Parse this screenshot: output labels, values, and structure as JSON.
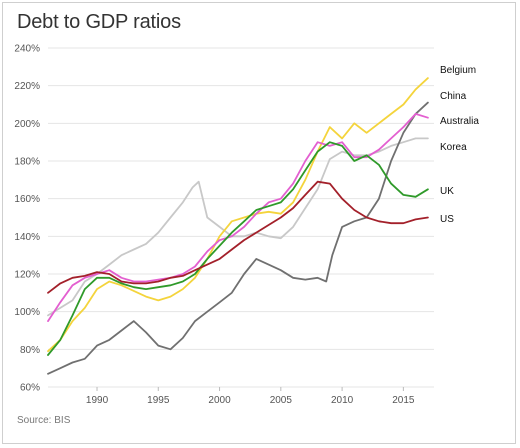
{
  "title": "Debt to GDP ratios",
  "source": "Source: BIS",
  "chart_data": {
    "type": "line",
    "title": "Debt to GDP ratios",
    "xlabel": "",
    "ylabel": "",
    "xlim": [
      1986,
      2017.5
    ],
    "ylim": [
      60,
      240
    ],
    "x_ticks": [
      1990,
      1995,
      2000,
      2005,
      2010,
      2015
    ],
    "y_ticks": [
      60,
      80,
      100,
      120,
      140,
      160,
      180,
      200,
      220,
      240
    ],
    "y_tick_suffix": "%",
    "grid": "horizontal",
    "legend": "inline labels at line ends (right)",
    "series": [
      {
        "name": "Korea",
        "color": "#c8c8c8",
        "points": [
          [
            1986,
            98
          ],
          [
            1987,
            102
          ],
          [
            1988,
            106
          ],
          [
            1989,
            116
          ],
          [
            1990,
            120
          ],
          [
            1991,
            125
          ],
          [
            1992,
            130
          ],
          [
            1993,
            133
          ],
          [
            1994,
            136
          ],
          [
            1995,
            142
          ],
          [
            1996,
            150
          ],
          [
            1997,
            158
          ],
          [
            1997.8,
            166
          ],
          [
            1998.3,
            169
          ],
          [
            1999,
            150
          ],
          [
            2000,
            145
          ],
          [
            2001,
            140
          ],
          [
            2002,
            140
          ],
          [
            2003,
            142
          ],
          [
            2004,
            140
          ],
          [
            2005,
            139
          ],
          [
            2006,
            145
          ],
          [
            2007,
            155
          ],
          [
            2008,
            165
          ],
          [
            2009,
            181
          ],
          [
            2010,
            185
          ],
          [
            2011,
            183
          ],
          [
            2012,
            183
          ],
          [
            2013,
            185
          ],
          [
            2014,
            188
          ],
          [
            2015,
            190
          ],
          [
            2016,
            192
          ],
          [
            2017,
            192
          ]
        ]
      },
      {
        "name": "China",
        "color": "#707070",
        "points": [
          [
            1986,
            67
          ],
          [
            1987,
            70
          ],
          [
            1988,
            73
          ],
          [
            1989,
            75
          ],
          [
            1990,
            82
          ],
          [
            1991,
            85
          ],
          [
            1992,
            90
          ],
          [
            1993,
            95
          ],
          [
            1994,
            89
          ],
          [
            1995,
            82
          ],
          [
            1996,
            80
          ],
          [
            1997,
            86
          ],
          [
            1998,
            95
          ],
          [
            1999,
            100
          ],
          [
            2000,
            105
          ],
          [
            2001,
            110
          ],
          [
            2002,
            120
          ],
          [
            2003,
            128
          ],
          [
            2004,
            125
          ],
          [
            2005,
            122
          ],
          [
            2006,
            118
          ],
          [
            2007,
            117
          ],
          [
            2008,
            118
          ],
          [
            2008.7,
            116
          ],
          [
            2009.2,
            130
          ],
          [
            2010,
            145
          ],
          [
            2011,
            148
          ],
          [
            2012,
            150
          ],
          [
            2013,
            160
          ],
          [
            2014,
            180
          ],
          [
            2015,
            195
          ],
          [
            2016,
            205
          ],
          [
            2017,
            211
          ]
        ]
      },
      {
        "name": "Belgium",
        "color": "#f4d43c",
        "points": [
          [
            1986,
            79
          ],
          [
            1987,
            85
          ],
          [
            1988,
            95
          ],
          [
            1989,
            102
          ],
          [
            1990,
            112
          ],
          [
            1991,
            116
          ],
          [
            1992,
            114
          ],
          [
            1993,
            111
          ],
          [
            1994,
            108
          ],
          [
            1995,
            106
          ],
          [
            1996,
            108
          ],
          [
            1997,
            112
          ],
          [
            1998,
            118
          ],
          [
            1999,
            128
          ],
          [
            2000,
            140
          ],
          [
            2001,
            148
          ],
          [
            2002,
            150
          ],
          [
            2003,
            152
          ],
          [
            2004,
            153
          ],
          [
            2005,
            152
          ],
          [
            2006,
            158
          ],
          [
            2007,
            170
          ],
          [
            2008,
            185
          ],
          [
            2009,
            198
          ],
          [
            2010,
            192
          ],
          [
            2011,
            200
          ],
          [
            2012,
            195
          ],
          [
            2013,
            200
          ],
          [
            2014,
            205
          ],
          [
            2015,
            210
          ],
          [
            2016,
            218
          ],
          [
            2017,
            224
          ]
        ]
      },
      {
        "name": "Australia",
        "color": "#e35fd0",
        "points": [
          [
            1986,
            95
          ],
          [
            1987,
            105
          ],
          [
            1988,
            114
          ],
          [
            1989,
            118
          ],
          [
            1990,
            120
          ],
          [
            1991,
            122
          ],
          [
            1992,
            118
          ],
          [
            1993,
            116
          ],
          [
            1994,
            116
          ],
          [
            1995,
            117
          ],
          [
            1996,
            118
          ],
          [
            1997,
            120
          ],
          [
            1998,
            124
          ],
          [
            1999,
            132
          ],
          [
            2000,
            138
          ],
          [
            2001,
            140
          ],
          [
            2002,
            145
          ],
          [
            2003,
            152
          ],
          [
            2004,
            158
          ],
          [
            2005,
            160
          ],
          [
            2006,
            168
          ],
          [
            2007,
            180
          ],
          [
            2008,
            190
          ],
          [
            2009,
            188
          ],
          [
            2010,
            190
          ],
          [
            2011,
            182
          ],
          [
            2012,
            182
          ],
          [
            2013,
            186
          ],
          [
            2014,
            192
          ],
          [
            2015,
            198
          ],
          [
            2016,
            205
          ],
          [
            2017,
            203
          ]
        ]
      },
      {
        "name": "UK",
        "color": "#2f9a2a",
        "points": [
          [
            1986,
            77
          ],
          [
            1987,
            85
          ],
          [
            1988,
            98
          ],
          [
            1989,
            112
          ],
          [
            1990,
            118
          ],
          [
            1991,
            118
          ],
          [
            1992,
            115
          ],
          [
            1993,
            113
          ],
          [
            1994,
            112
          ],
          [
            1995,
            113
          ],
          [
            1996,
            114
          ],
          [
            1997,
            116
          ],
          [
            1998,
            120
          ],
          [
            1999,
            128
          ],
          [
            2000,
            135
          ],
          [
            2001,
            142
          ],
          [
            2002,
            148
          ],
          [
            2003,
            154
          ],
          [
            2004,
            156
          ],
          [
            2005,
            158
          ],
          [
            2006,
            165
          ],
          [
            2007,
            175
          ],
          [
            2008,
            185
          ],
          [
            2009,
            190
          ],
          [
            2010,
            188
          ],
          [
            2011,
            180
          ],
          [
            2012,
            183
          ],
          [
            2013,
            178
          ],
          [
            2014,
            168
          ],
          [
            2015,
            162
          ],
          [
            2016,
            161
          ],
          [
            2017,
            165
          ]
        ]
      },
      {
        "name": "US",
        "color": "#a3202a",
        "points": [
          [
            1986,
            110
          ],
          [
            1987,
            115
          ],
          [
            1988,
            118
          ],
          [
            1989,
            119
          ],
          [
            1990,
            121
          ],
          [
            1991,
            120
          ],
          [
            1992,
            116
          ],
          [
            1993,
            115
          ],
          [
            1994,
            115
          ],
          [
            1995,
            116
          ],
          [
            1996,
            118
          ],
          [
            1997,
            119
          ],
          [
            1998,
            122
          ],
          [
            1999,
            125
          ],
          [
            2000,
            128
          ],
          [
            2001,
            133
          ],
          [
            2002,
            138
          ],
          [
            2003,
            142
          ],
          [
            2004,
            146
          ],
          [
            2005,
            150
          ],
          [
            2006,
            155
          ],
          [
            2007,
            162
          ],
          [
            2008,
            169
          ],
          [
            2009,
            168
          ],
          [
            2010,
            160
          ],
          [
            2011,
            154
          ],
          [
            2012,
            150
          ],
          [
            2013,
            148
          ],
          [
            2014,
            147
          ],
          [
            2015,
            147
          ],
          [
            2016,
            149
          ],
          [
            2017,
            150
          ]
        ]
      }
    ]
  }
}
